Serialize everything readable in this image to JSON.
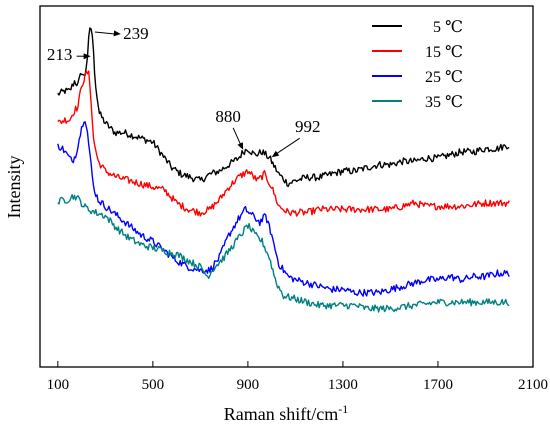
{
  "chart_data": {
    "type": "line",
    "title": "",
    "xlabel": "Raman shift/cm",
    "xlabel_superscript": "-1",
    "ylabel": "Intensity",
    "xlim": [
      25,
      2100
    ],
    "ylim": [
      0,
      100
    ],
    "xticks": [
      100,
      500,
      900,
      1300,
      1700,
      2100
    ],
    "yticks_shown": false,
    "grid": false,
    "legend_position": "top-right",
    "series": [
      {
        "name": "5 ℃",
        "color": "#000000",
        "points": [
          [
            100,
            79
          ],
          [
            130,
            80
          ],
          [
            150,
            80
          ],
          [
            170,
            83
          ],
          [
            185,
            82
          ],
          [
            200,
            86
          ],
          [
            213,
            84
          ],
          [
            225,
            91
          ],
          [
            232,
            98
          ],
          [
            239,
            100
          ],
          [
            246,
            97
          ],
          [
            253,
            88
          ],
          [
            262,
            80
          ],
          [
            275,
            73
          ],
          [
            300,
            70
          ],
          [
            340,
            67
          ],
          [
            380,
            67
          ],
          [
            420,
            66
          ],
          [
            460,
            65
          ],
          [
            500,
            64
          ],
          [
            540,
            60
          ],
          [
            580,
            56
          ],
          [
            620,
            54
          ],
          [
            660,
            53
          ],
          [
            700,
            52
          ],
          [
            740,
            54
          ],
          [
            780,
            55
          ],
          [
            820,
            57
          ],
          [
            860,
            59
          ],
          [
            880,
            61
          ],
          [
            900,
            62
          ],
          [
            930,
            60
          ],
          [
            960,
            61
          ],
          [
            992,
            59
          ],
          [
            1030,
            54
          ],
          [
            1070,
            51
          ],
          [
            1100,
            52
          ],
          [
            1150,
            53
          ],
          [
            1200,
            53
          ],
          [
            1250,
            54
          ],
          [
            1300,
            55
          ],
          [
            1350,
            55
          ],
          [
            1400,
            56
          ],
          [
            1450,
            57
          ],
          [
            1500,
            57
          ],
          [
            1550,
            58
          ],
          [
            1600,
            58
          ],
          [
            1650,
            59
          ],
          [
            1700,
            59
          ],
          [
            1750,
            60
          ],
          [
            1800,
            61
          ],
          [
            1850,
            61
          ],
          [
            1900,
            62
          ],
          [
            1950,
            62
          ],
          [
            1990,
            63
          ],
          [
            2000,
            63
          ]
        ]
      },
      {
        "name": "15 ℃",
        "color": "#ff0000",
        "points": [
          [
            100,
            70
          ],
          [
            130,
            71
          ],
          [
            150,
            71
          ],
          [
            170,
            74
          ],
          [
            185,
            75
          ],
          [
            200,
            82
          ],
          [
            213,
            84
          ],
          [
            222,
            86
          ],
          [
            232,
            85
          ],
          [
            240,
            77
          ],
          [
            250,
            65
          ],
          [
            270,
            58
          ],
          [
            300,
            55
          ],
          [
            350,
            53
          ],
          [
            400,
            52
          ],
          [
            450,
            51
          ],
          [
            500,
            50
          ],
          [
            550,
            49
          ],
          [
            600,
            45
          ],
          [
            650,
            43
          ],
          [
            700,
            42
          ],
          [
            740,
            43
          ],
          [
            780,
            46
          ],
          [
            820,
            50
          ],
          [
            860,
            53
          ],
          [
            900,
            55
          ],
          [
            940,
            52
          ],
          [
            970,
            54
          ],
          [
            1000,
            50
          ],
          [
            1030,
            44
          ],
          [
            1070,
            42
          ],
          [
            1100,
            42
          ],
          [
            1150,
            42
          ],
          [
            1200,
            43
          ],
          [
            1300,
            43
          ],
          [
            1400,
            43
          ],
          [
            1500,
            43
          ],
          [
            1550,
            44
          ],
          [
            1600,
            45
          ],
          [
            1650,
            44
          ],
          [
            1700,
            44
          ],
          [
            1800,
            44
          ],
          [
            1900,
            45
          ],
          [
            1990,
            45
          ],
          [
            2000,
            45
          ]
        ]
      },
      {
        "name": "25 ℃",
        "color": "#0000ff",
        "points": [
          [
            100,
            63
          ],
          [
            120,
            62
          ],
          [
            140,
            60
          ],
          [
            160,
            58
          ],
          [
            175,
            60
          ],
          [
            190,
            65
          ],
          [
            205,
            70
          ],
          [
            213,
            72
          ],
          [
            222,
            69
          ],
          [
            235,
            60
          ],
          [
            250,
            50
          ],
          [
            270,
            46
          ],
          [
            300,
            44
          ],
          [
            350,
            41
          ],
          [
            400,
            38
          ],
          [
            450,
            35
          ],
          [
            500,
            33
          ],
          [
            550,
            30
          ],
          [
            600,
            27
          ],
          [
            650,
            25
          ],
          [
            700,
            24
          ],
          [
            740,
            24
          ],
          [
            780,
            28
          ],
          [
            820,
            35
          ],
          [
            860,
            40
          ],
          [
            890,
            43
          ],
          [
            920,
            41
          ],
          [
            950,
            39
          ],
          [
            975,
            41
          ],
          [
            1000,
            35
          ],
          [
            1030,
            26
          ],
          [
            1070,
            22
          ],
          [
            1100,
            21
          ],
          [
            1150,
            20
          ],
          [
            1200,
            19
          ],
          [
            1250,
            18
          ],
          [
            1300,
            18
          ],
          [
            1350,
            17
          ],
          [
            1400,
            17
          ],
          [
            1450,
            17
          ],
          [
            1500,
            18
          ],
          [
            1550,
            19
          ],
          [
            1600,
            20
          ],
          [
            1650,
            21
          ],
          [
            1700,
            21
          ],
          [
            1750,
            22
          ],
          [
            1800,
            21
          ],
          [
            1850,
            22
          ],
          [
            1900,
            22
          ],
          [
            1950,
            23
          ],
          [
            2000,
            23
          ]
        ]
      },
      {
        "name": "35 ℃",
        "color": "#008080",
        "points": [
          [
            100,
            45
          ],
          [
            120,
            46
          ],
          [
            140,
            46
          ],
          [
            160,
            47
          ],
          [
            175,
            47
          ],
          [
            190,
            46
          ],
          [
            210,
            44
          ],
          [
            230,
            43
          ],
          [
            260,
            42
          ],
          [
            300,
            41
          ],
          [
            350,
            37
          ],
          [
            400,
            34
          ],
          [
            450,
            32
          ],
          [
            500,
            31
          ],
          [
            550,
            30
          ],
          [
            600,
            29
          ],
          [
            650,
            27
          ],
          [
            700,
            25
          ],
          [
            730,
            22
          ],
          [
            760,
            25
          ],
          [
            800,
            28
          ],
          [
            850,
            33
          ],
          [
            880,
            36
          ],
          [
            900,
            38
          ],
          [
            930,
            35
          ],
          [
            960,
            33
          ],
          [
            990,
            28
          ],
          [
            1020,
            20
          ],
          [
            1050,
            16
          ],
          [
            1100,
            15
          ],
          [
            1150,
            14
          ],
          [
            1200,
            13
          ],
          [
            1250,
            13
          ],
          [
            1300,
            13
          ],
          [
            1350,
            13
          ],
          [
            1400,
            12
          ],
          [
            1500,
            12
          ],
          [
            1600,
            13
          ],
          [
            1700,
            14
          ],
          [
            1800,
            14
          ],
          [
            1900,
            14
          ],
          [
            2000,
            14
          ]
        ]
      }
    ],
    "annotations": [
      {
        "text": "213",
        "x": 213,
        "y": 84,
        "arrow": "right"
      },
      {
        "text": "239",
        "x": 239,
        "y": 100,
        "arrow": "left"
      },
      {
        "text": "880",
        "x": 880,
        "y": 61,
        "arrow": "down"
      },
      {
        "text": "992",
        "x": 992,
        "y": 59,
        "arrow": "down"
      }
    ]
  }
}
